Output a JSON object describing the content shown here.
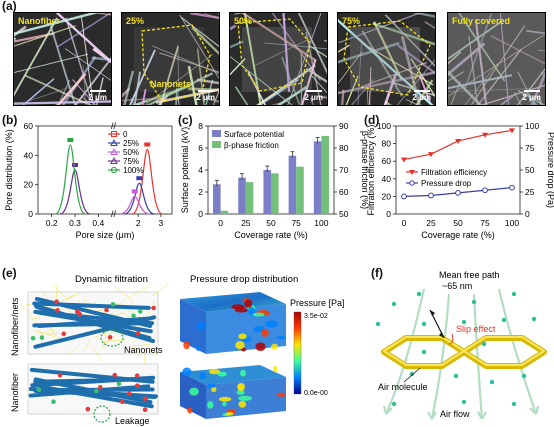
{
  "panel_letters": {
    "a": "(a)",
    "b": "(b)",
    "c": "(c)",
    "d": "(d)",
    "e": "(e)",
    "f": "(f)"
  },
  "sem_panels": [
    {
      "label": "Nanofiber",
      "scale": "2 μm"
    },
    {
      "label": "25%",
      "scale": "2 μm",
      "annotation": "Nanonets"
    },
    {
      "label": "50%",
      "scale": "2 μm"
    },
    {
      "label": "75%",
      "scale": "2 μm"
    },
    {
      "label": "Fully covered",
      "scale": "2 μm"
    }
  ],
  "panel_e": {
    "col1_title": "Dynamic filtration",
    "col2_title": "Pressure drop distribution",
    "row1_label": "Nanofiber/nets",
    "row2_label": "Nanofiber",
    "nanonets_label": "Nanonets",
    "leakage_label": "Leakage",
    "colorbar_title": "Pressure [Pa]",
    "colorbar_max": "3.5e-02",
    "colorbar_min": "0.0e-00"
  },
  "panel_f": {
    "mean_free_path": "Mean free path",
    "mfp_value": "~65 nm",
    "slip_effect": "Slip effect",
    "air_molecule": "Air molecule",
    "air_flow": "Air flow"
  },
  "chart_data": [
    {
      "id": "b",
      "type": "line",
      "xlabel": "Pore size (μm)",
      "ylabel": "Pore distribution (%)",
      "ylim": [
        0,
        60
      ],
      "yticks": [
        "0",
        "20",
        "40",
        "60"
      ],
      "xticks": [
        "0.2",
        "0.3",
        "0.4",
        "2",
        "3"
      ],
      "axis_break": "//",
      "series": [
        {
          "name": "0",
          "color": "#e8322c",
          "marker": "square",
          "peak_x": 2.4,
          "peak_y": 44
        },
        {
          "name": "25%",
          "color": "#3a3fa8",
          "marker": "triangle-up",
          "peak_x": 2.05,
          "peak_y": 21
        },
        {
          "name": "50%",
          "color": "#c45bd8",
          "marker": "triangle-down",
          "peak_x": 1.85,
          "peak_y": 12
        },
        {
          "name": "75%",
          "color": "#6a2f8f",
          "marker": "triangle-left",
          "peak_x": 0.3,
          "peak_y": 30
        },
        {
          "name": "100%",
          "color": "#2aa544",
          "marker": "circle",
          "peak_x": 0.28,
          "peak_y": 47
        }
      ]
    },
    {
      "id": "c",
      "type": "bar",
      "categories": [
        "0",
        "25",
        "50",
        "75",
        "100"
      ],
      "xlabel": "Coverage rate (%)",
      "ylabel": "Surface potential (kV)",
      "y2label": "β-phase friction (%)",
      "ylim": [
        0,
        8
      ],
      "y2lim": [
        50,
        90
      ],
      "yticks": [
        "0",
        "2",
        "4",
        "6",
        "8"
      ],
      "y2ticks": [
        "50",
        "60",
        "70",
        "80",
        "90"
      ],
      "series": [
        {
          "name": "Surface potential",
          "color": "#7b7fc8",
          "axis": "left",
          "values": [
            2.7,
            3.3,
            4.0,
            5.3,
            6.6
          ]
        },
        {
          "name": "β-phase friction",
          "color": "#74c07a",
          "axis": "right",
          "values": [
            51.5,
            64.5,
            68.5,
            71.5,
            85.5
          ]
        }
      ]
    },
    {
      "id": "d",
      "type": "line",
      "categories": [
        "0",
        "25",
        "50",
        "75",
        "100"
      ],
      "xlabel": "Coverage rate (%)",
      "ylabel": "Filtration efficiency (%)",
      "y2label": "Pressure drop (Pa)",
      "ylim": [
        0,
        100
      ],
      "y2lim": [
        0,
        100
      ],
      "yticks": [
        "0",
        "20",
        "40",
        "60",
        "80",
        "100"
      ],
      "y2ticks": [
        "0",
        "25",
        "50",
        "75",
        "100"
      ],
      "series": [
        {
          "name": "Filtration efficiency",
          "color": "#e8322c",
          "axis": "left",
          "values": [
            62,
            68,
            83,
            90,
            95
          ]
        },
        {
          "name": "Pressure drop",
          "color": "#3a3fa8",
          "axis": "right",
          "values": [
            20,
            21,
            24,
            27,
            30
          ]
        }
      ]
    }
  ]
}
